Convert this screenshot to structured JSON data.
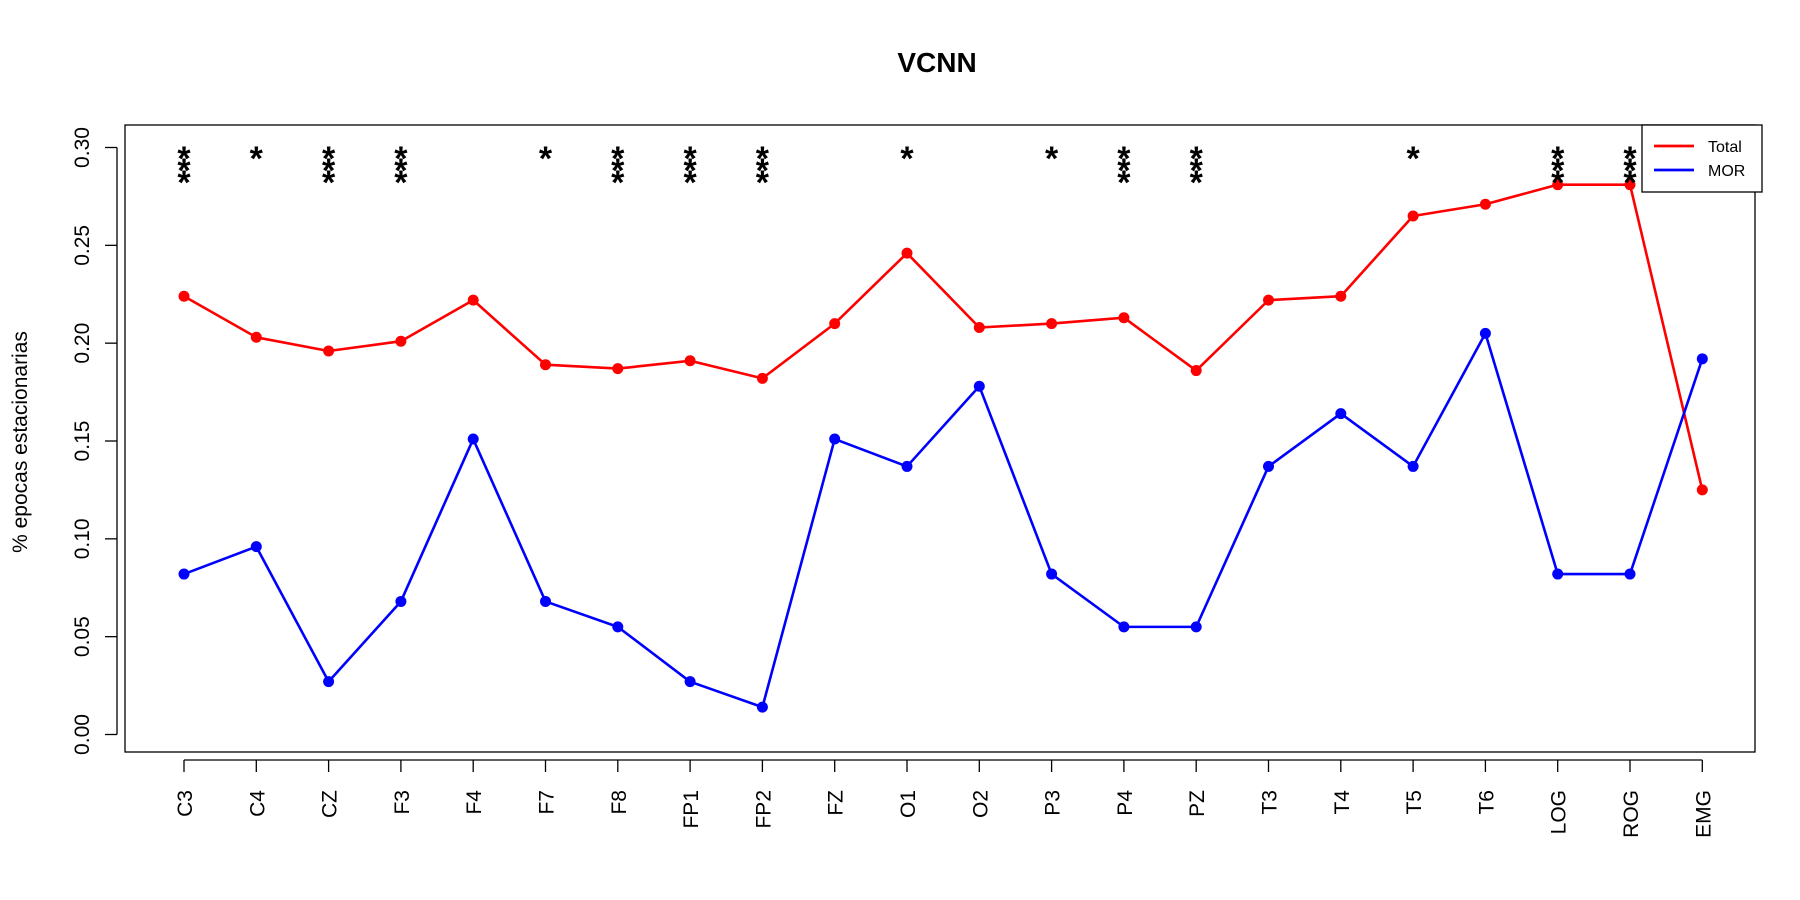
{
  "chart_data": {
    "type": "line",
    "title": "VCNN",
    "xlabel": "",
    "ylabel": "% epocas estacionarias",
    "ylim": [
      0,
      0.3
    ],
    "yticks": [
      "0.00",
      "0.05",
      "0.10",
      "0.15",
      "0.20",
      "0.25",
      "0.30"
    ],
    "legend_position": "top-right",
    "categories": [
      "C3",
      "C4",
      "CZ",
      "F3",
      "F4",
      "F7",
      "F8",
      "FP1",
      "FP2",
      "FZ",
      "O1",
      "O2",
      "P3",
      "P4",
      "PZ",
      "T3",
      "T4",
      "T5",
      "T6",
      "LOG",
      "ROG",
      "EMG"
    ],
    "series": [
      {
        "name": "Total",
        "color": "#ff0000",
        "values": [
          0.224,
          0.203,
          0.196,
          0.201,
          0.222,
          0.189,
          0.187,
          0.191,
          0.182,
          0.21,
          0.246,
          0.208,
          0.21,
          0.213,
          0.186,
          0.222,
          0.224,
          0.265,
          0.271,
          0.281,
          0.281,
          0.125
        ]
      },
      {
        "name": "MOR",
        "color": "#0000ff",
        "values": [
          0.082,
          0.096,
          0.027,
          0.068,
          0.151,
          0.068,
          0.055,
          0.027,
          0.014,
          0.151,
          0.137,
          0.178,
          0.082,
          0.055,
          0.055,
          0.137,
          0.164,
          0.137,
          0.205,
          0.082,
          0.082,
          0.192
        ]
      }
    ],
    "significance": [
      "***",
      "*",
      "***",
      "***",
      "",
      "*",
      "***",
      "***",
      "***",
      "",
      "*",
      "",
      "*",
      "***",
      "***",
      "",
      "",
      "*",
      "",
      "***",
      "***",
      ""
    ]
  }
}
